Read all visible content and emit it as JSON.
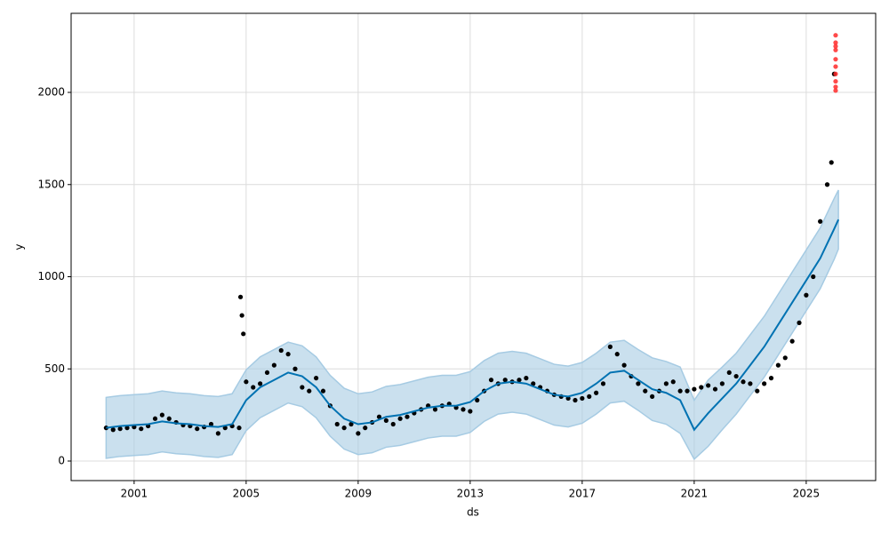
{
  "chart_data": {
    "type": "forecast",
    "x_label": "ds",
    "y_label": "y",
    "xlim": [
      1998.75,
      2027.48
    ],
    "ylim": [
      -106,
      2429
    ],
    "xticks": [
      2001,
      2005,
      2009,
      2013,
      2017,
      2021,
      2025
    ],
    "yticks": [
      0,
      500,
      1000,
      1500,
      2000
    ],
    "grid": true,
    "observed": {
      "color": "#000000",
      "x": [
        2000,
        2000.25,
        2000.5,
        2000.75,
        2001,
        2001.25,
        2001.5,
        2001.75,
        2002,
        2002.25,
        2002.5,
        2002.75,
        2003,
        2003.25,
        2003.5,
        2003.75,
        2004,
        2004.25,
        2004.5,
        2004.75,
        2004.8,
        2004.85,
        2004.9,
        2005,
        2005.25,
        2005.5,
        2005.75,
        2006,
        2006.25,
        2006.5,
        2006.75,
        2007,
        2007.25,
        2007.5,
        2007.75,
        2008,
        2008.25,
        2008.5,
        2008.75,
        2009,
        2009.25,
        2009.5,
        2009.75,
        2010,
        2010.25,
        2010.5,
        2010.75,
        2011,
        2011.25,
        2011.5,
        2011.75,
        2012,
        2012.25,
        2012.5,
        2012.75,
        2013,
        2013.25,
        2013.5,
        2013.75,
        2014,
        2014.25,
        2014.5,
        2014.75,
        2015,
        2015.25,
        2015.5,
        2015.75,
        2016,
        2016.25,
        2016.5,
        2016.75,
        2017,
        2017.25,
        2017.5,
        2017.75,
        2018,
        2018.25,
        2018.5,
        2018.75,
        2019,
        2019.25,
        2019.5,
        2019.75,
        2020,
        2020.25,
        2020.5,
        2020.75,
        2021,
        2021.25,
        2021.5,
        2021.75,
        2022,
        2022.25,
        2022.5,
        2022.75,
        2023,
        2023.25,
        2023.5,
        2023.75,
        2024,
        2024.25,
        2024.5,
        2024.75,
        2025,
        2025.25,
        2025.5,
        2025.75,
        2025.9,
        2026
      ],
      "values": [
        180,
        170,
        175,
        180,
        185,
        175,
        190,
        230,
        250,
        230,
        210,
        195,
        190,
        175,
        185,
        200,
        150,
        180,
        190,
        180,
        890,
        790,
        690,
        430,
        400,
        420,
        480,
        520,
        600,
        580,
        500,
        400,
        380,
        450,
        380,
        300,
        200,
        180,
        200,
        150,
        180,
        210,
        240,
        220,
        200,
        230,
        240,
        260,
        280,
        300,
        280,
        300,
        310,
        290,
        280,
        270,
        330,
        380,
        440,
        420,
        440,
        430,
        440,
        450,
        420,
        400,
        380,
        360,
        350,
        340,
        330,
        340,
        350,
        370,
        420,
        620,
        580,
        520,
        460,
        420,
        380,
        350,
        380,
        420,
        430,
        380,
        380,
        390,
        400,
        410,
        390,
        420,
        480,
        460,
        430,
        420,
        380,
        420,
        450,
        520,
        560,
        650,
        750,
        900,
        1000,
        1300,
        1500,
        1620,
        2100
      ]
    },
    "future_actual": {
      "color": "#ff2a2a",
      "x": [
        2026.05,
        2026.05,
        2026.05,
        2026.05,
        2026.05,
        2026.05,
        2026.05,
        2026.05,
        2026.05,
        2026.05
      ],
      "values": [
        2010,
        2030,
        2060,
        2100,
        2140,
        2180,
        2230,
        2250,
        2270,
        2310
      ]
    },
    "forecast": {
      "color": "#0072b2",
      "band_color": "#a6cbe3",
      "x": [
        2000,
        2000.5,
        2001,
        2001.5,
        2002,
        2002.5,
        2003,
        2003.5,
        2004,
        2004.5,
        2005,
        2005.5,
        2006,
        2006.5,
        2007,
        2007.5,
        2008,
        2008.5,
        2009,
        2009.5,
        2010,
        2010.5,
        2011,
        2011.5,
        2012,
        2012.5,
        2013,
        2013.5,
        2014,
        2014.5,
        2015,
        2015.5,
        2016,
        2016.5,
        2017,
        2017.5,
        2018,
        2018.5,
        2019,
        2019.5,
        2020,
        2020.5,
        2021,
        2021.5,
        2022,
        2022.5,
        2023,
        2023.5,
        2024,
        2024.5,
        2025,
        2025.5,
        2026,
        2026.15
      ],
      "values": [
        180,
        190,
        195,
        200,
        215,
        205,
        200,
        190,
        185,
        200,
        330,
        400,
        440,
        480,
        460,
        400,
        300,
        230,
        200,
        210,
        240,
        250,
        270,
        290,
        300,
        300,
        320,
        380,
        420,
        430,
        420,
        390,
        360,
        350,
        370,
        420,
        480,
        490,
        440,
        390,
        370,
        330,
        170,
        260,
        340,
        420,
        520,
        620,
        740,
        860,
        980,
        1100,
        1260,
        1310
      ],
      "lower": [
        15,
        25,
        30,
        35,
        50,
        40,
        35,
        25,
        20,
        35,
        165,
        235,
        275,
        315,
        295,
        235,
        135,
        65,
        35,
        45,
        75,
        85,
        105,
        125,
        135,
        135,
        155,
        215,
        255,
        265,
        255,
        225,
        195,
        185,
        205,
        255,
        315,
        325,
        275,
        220,
        200,
        150,
        10,
        80,
        170,
        255,
        355,
        455,
        575,
        695,
        815,
        935,
        1095,
        1150
      ],
      "upper": [
        345,
        355,
        360,
        365,
        380,
        370,
        365,
        355,
        350,
        365,
        495,
        565,
        605,
        645,
        625,
        565,
        465,
        395,
        365,
        375,
        405,
        415,
        435,
        455,
        465,
        465,
        485,
        545,
        585,
        595,
        585,
        555,
        525,
        515,
        535,
        585,
        645,
        655,
        605,
        560,
        540,
        510,
        330,
        440,
        510,
        585,
        685,
        785,
        905,
        1025,
        1145,
        1265,
        1425,
        1470
      ]
    }
  }
}
